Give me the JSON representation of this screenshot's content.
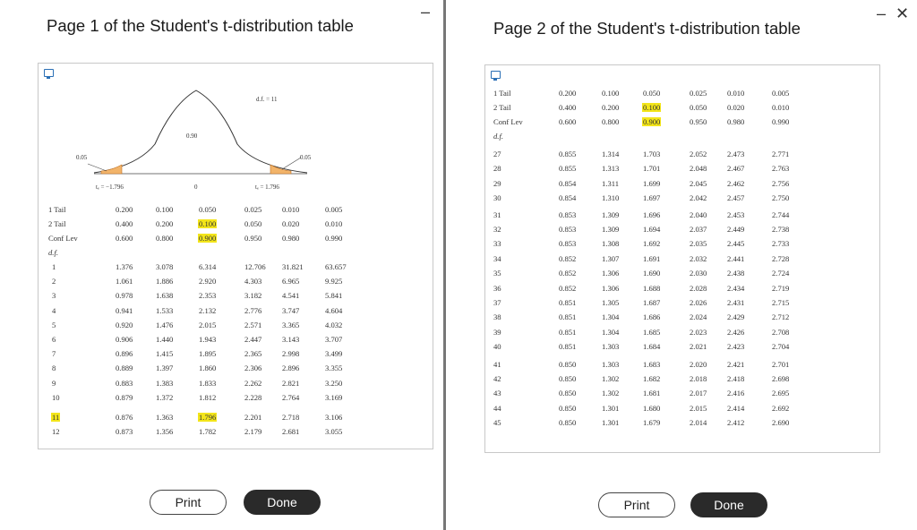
{
  "window1": {
    "title": "Page 1 of the Student's t-distribution table",
    "curve": {
      "df_label": "d.f. = 11",
      "center_area": "0.90",
      "left_tail": "0.05",
      "right_tail": "0.05",
      "left_crit": "tₑ = −1.796",
      "right_crit": "tₑ = 1.796",
      "zero": "0"
    },
    "row_labels": [
      "1 Tail",
      "2 Tail",
      "Conf Lev",
      "d.f."
    ],
    "header_columns": [
      [
        "0.200",
        "0.400",
        "0.600"
      ],
      [
        "0.100",
        "0.200",
        "0.800"
      ],
      [
        "0.050",
        "0.100",
        "0.900"
      ],
      [
        "0.025",
        "0.050",
        "0.950"
      ],
      [
        "0.010",
        "0.020",
        "0.980"
      ],
      [
        "0.005",
        "0.010",
        "0.990"
      ]
    ],
    "highlight_col": 2,
    "highlight_row": 10,
    "rows": [
      {
        "df": "1",
        "v": [
          "1.376",
          "3.078",
          "6.314",
          "12.706",
          "31.821",
          "63.657"
        ]
      },
      {
        "df": "2",
        "v": [
          "1.061",
          "1.886",
          "2.920",
          "4.303",
          "6.965",
          "9.925"
        ]
      },
      {
        "df": "3",
        "v": [
          "0.978",
          "1.638",
          "2.353",
          "3.182",
          "4.541",
          "5.841"
        ]
      },
      {
        "df": "4",
        "v": [
          "0.941",
          "1.533",
          "2.132",
          "2.776",
          "3.747",
          "4.604"
        ]
      },
      {
        "df": "5",
        "v": [
          "0.920",
          "1.476",
          "2.015",
          "2.571",
          "3.365",
          "4.032"
        ]
      },
      {
        "df": "6",
        "v": [
          "0.906",
          "1.440",
          "1.943",
          "2.447",
          "3.143",
          "3.707"
        ]
      },
      {
        "df": "7",
        "v": [
          "0.896",
          "1.415",
          "1.895",
          "2.365",
          "2.998",
          "3.499"
        ]
      },
      {
        "df": "8",
        "v": [
          "0.889",
          "1.397",
          "1.860",
          "2.306",
          "2.896",
          "3.355"
        ]
      },
      {
        "df": "9",
        "v": [
          "0.883",
          "1.383",
          "1.833",
          "2.262",
          "2.821",
          "3.250"
        ]
      },
      {
        "df": "10",
        "v": [
          "0.879",
          "1.372",
          "1.812",
          "2.228",
          "2.764",
          "3.169"
        ]
      },
      {
        "df": "11",
        "v": [
          "0.876",
          "1.363",
          "1.796",
          "2.201",
          "2.718",
          "3.106"
        ]
      },
      {
        "df": "12",
        "v": [
          "0.873",
          "1.356",
          "1.782",
          "2.179",
          "2.681",
          "3.055"
        ]
      }
    ],
    "print_label": "Print",
    "done_label": "Done"
  },
  "window2": {
    "title": "Page 2 of the Student's t-distribution table",
    "row_labels": [
      "1 Tail",
      "2 Tail",
      "Conf Lev",
      "d.f."
    ],
    "header_columns": [
      [
        "0.200",
        "0.400",
        "0.600"
      ],
      [
        "0.100",
        "0.200",
        "0.800"
      ],
      [
        "0.050",
        "0.100",
        "0.900"
      ],
      [
        "0.025",
        "0.050",
        "0.950"
      ],
      [
        "0.010",
        "0.020",
        "0.980"
      ],
      [
        "0.005",
        "0.010",
        "0.990"
      ]
    ],
    "highlight_col": 2,
    "rows": [
      {
        "df": "27",
        "v": [
          "0.855",
          "1.314",
          "1.703",
          "2.052",
          "2.473",
          "2.771"
        ]
      },
      {
        "df": "28",
        "v": [
          "0.855",
          "1.313",
          "1.701",
          "2.048",
          "2.467",
          "2.763"
        ]
      },
      {
        "df": "29",
        "v": [
          "0.854",
          "1.311",
          "1.699",
          "2.045",
          "2.462",
          "2.756"
        ]
      },
      {
        "df": "30",
        "v": [
          "0.854",
          "1.310",
          "1.697",
          "2.042",
          "2.457",
          "2.750"
        ]
      },
      {
        "df": "31",
        "v": [
          "0.853",
          "1.309",
          "1.696",
          "2.040",
          "2.453",
          "2.744"
        ]
      },
      {
        "df": "32",
        "v": [
          "0.853",
          "1.309",
          "1.694",
          "2.037",
          "2.449",
          "2.738"
        ]
      },
      {
        "df": "33",
        "v": [
          "0.853",
          "1.308",
          "1.692",
          "2.035",
          "2.445",
          "2.733"
        ]
      },
      {
        "df": "34",
        "v": [
          "0.852",
          "1.307",
          "1.691",
          "2.032",
          "2.441",
          "2.728"
        ]
      },
      {
        "df": "35",
        "v": [
          "0.852",
          "1.306",
          "1.690",
          "2.030",
          "2.438",
          "2.724"
        ]
      },
      {
        "df": "36",
        "v": [
          "0.852",
          "1.306",
          "1.688",
          "2.028",
          "2.434",
          "2.719"
        ]
      },
      {
        "df": "37",
        "v": [
          "0.851",
          "1.305",
          "1.687",
          "2.026",
          "2.431",
          "2.715"
        ]
      },
      {
        "df": "38",
        "v": [
          "0.851",
          "1.304",
          "1.686",
          "2.024",
          "2.429",
          "2.712"
        ]
      },
      {
        "df": "39",
        "v": [
          "0.851",
          "1.304",
          "1.685",
          "2.023",
          "2.426",
          "2.708"
        ]
      },
      {
        "df": "40",
        "v": [
          "0.851",
          "1.303",
          "1.684",
          "2.021",
          "2.423",
          "2.704"
        ]
      },
      {
        "df": "41",
        "v": [
          "0.850",
          "1.303",
          "1.683",
          "2.020",
          "2.421",
          "2.701"
        ]
      },
      {
        "df": "42",
        "v": [
          "0.850",
          "1.302",
          "1.682",
          "2.018",
          "2.418",
          "2.698"
        ]
      },
      {
        "df": "43",
        "v": [
          "0.850",
          "1.302",
          "1.681",
          "2.017",
          "2.416",
          "2.695"
        ]
      },
      {
        "df": "44",
        "v": [
          "0.850",
          "1.301",
          "1.680",
          "2.015",
          "2.414",
          "2.692"
        ]
      },
      {
        "df": "45",
        "v": [
          "0.850",
          "1.301",
          "1.679",
          "2.014",
          "2.412",
          "2.690"
        ]
      }
    ],
    "print_label": "Print",
    "done_label": "Done"
  },
  "controls": {
    "minimize": "–",
    "close": "✕"
  },
  "colors": {
    "highlight": "#f3e51a",
    "tail_fill": "#f2b46a",
    "done_bg": "#2a2a2a"
  }
}
